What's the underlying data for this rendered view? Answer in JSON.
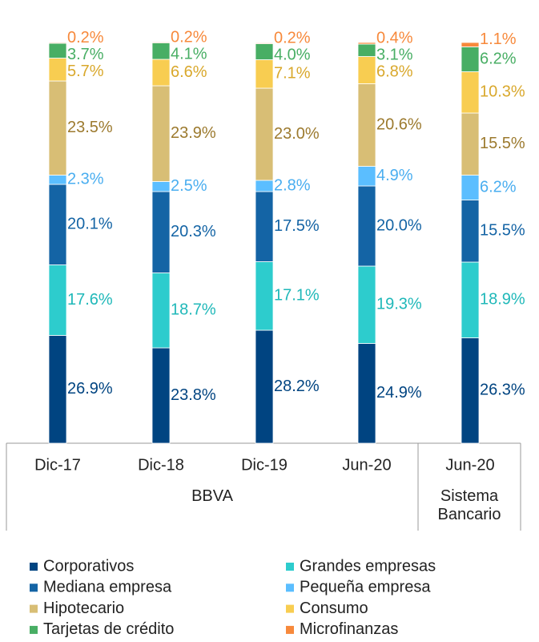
{
  "chart_data": {
    "type": "stacked-bar",
    "groups": [
      {
        "name": "BBVA",
        "categories": [
          "Dic-17",
          "Dic-18",
          "Dic-19",
          "Jun-20"
        ]
      },
      {
        "name": "Sistema Bancario",
        "categories": [
          "Jun-20"
        ]
      }
    ],
    "series": [
      {
        "name": "Corporativos",
        "color": "#004481",
        "label_color": "#004481",
        "values": [
          26.9,
          23.8,
          28.2,
          24.9,
          26.3
        ],
        "value_labels": [
          "26.9%",
          "23.8%",
          "28.2%",
          "24.9%",
          "26.3%"
        ]
      },
      {
        "name": "Grandes empresas",
        "color": "#2dcccd",
        "label_color": "#1fb8b9",
        "values": [
          17.6,
          18.7,
          17.1,
          19.3,
          18.9
        ],
        "value_labels": [
          "17.6%",
          "18.7%",
          "17.1%",
          "19.3%",
          "18.9%"
        ]
      },
      {
        "name": "Mediana empresa",
        "color": "#1464a5",
        "label_color": "#1464a5",
        "values": [
          20.1,
          20.3,
          17.5,
          20.0,
          15.5
        ],
        "value_labels": [
          "20.1%",
          "20.3%",
          "17.5%",
          "20.0%",
          "15.5%"
        ]
      },
      {
        "name": "Pequeña empresa",
        "color": "#5bbeff",
        "label_color": "#4aaef0",
        "values": [
          2.3,
          2.5,
          2.8,
          4.9,
          6.2
        ],
        "value_labels": [
          "2.3%",
          "2.5%",
          "2.8%",
          "4.9%",
          "6.2%"
        ]
      },
      {
        "name": "Hipotecario",
        "color": "#d8be75",
        "label_color": "#9c7a2e",
        "values": [
          23.5,
          23.9,
          23.0,
          20.6,
          15.5
        ],
        "value_labels": [
          "23.5%",
          "23.9%",
          "23.0%",
          "20.6%",
          "15.5%"
        ]
      },
      {
        "name": "Consumo",
        "color": "#f8cd51",
        "label_color": "#d9a82c",
        "values": [
          5.7,
          6.6,
          7.1,
          6.8,
          10.3
        ],
        "value_labels": [
          "5.7%",
          "6.6%",
          "7.1%",
          "6.8%",
          "10.3%"
        ]
      },
      {
        "name": "Tarjetas de crédito",
        "color": "#48ae64",
        "label_color": "#48ae64",
        "values": [
          3.7,
          4.1,
          4.0,
          3.1,
          6.2
        ],
        "value_labels": [
          "3.7%",
          "4.1%",
          "4.0%",
          "3.1%",
          "6.2%"
        ]
      },
      {
        "name": "Microfinanzas",
        "color": "#f7893b",
        "label_color": "#f7893b",
        "values": [
          0.2,
          0.2,
          0.2,
          0.4,
          1.1
        ],
        "value_labels": [
          "0.2%",
          "0.2%",
          "0.2%",
          "0.4%",
          "1.1%"
        ]
      }
    ]
  }
}
